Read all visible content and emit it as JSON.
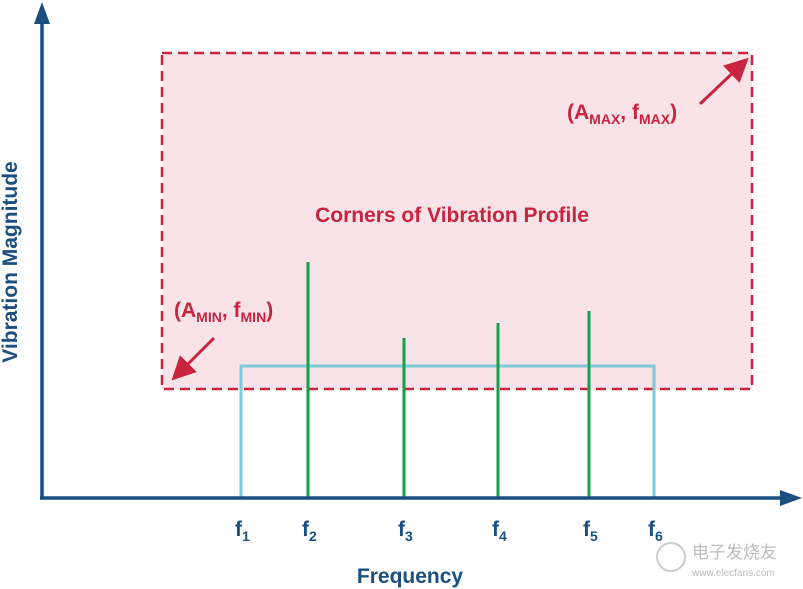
{
  "y_axis_label": "Vibration Magnitude",
  "x_axis_label": "Frequency",
  "profile_label": "Corners of Vibration Profile",
  "max_corner": {
    "open": "(",
    "a": "A",
    "a_sub": "MAX",
    "sep": ", ",
    "f": "f",
    "f_sub": "MAX",
    "close": ")"
  },
  "min_corner": {
    "open": "(",
    "a": "A",
    "a_sub": "MIN",
    "sep": ", ",
    "f": "f",
    "f_sub": "MIN",
    "close": ")"
  },
  "frequencies": [
    {
      "base": "f",
      "sub": "1"
    },
    {
      "base": "f",
      "sub": "2"
    },
    {
      "base": "f",
      "sub": "3"
    },
    {
      "base": "f",
      "sub": "4"
    },
    {
      "base": "f",
      "sub": "5"
    },
    {
      "base": "f",
      "sub": "6"
    }
  ],
  "watermark": {
    "name": "电子发烧友",
    "url": "www.elecfans.com"
  }
}
